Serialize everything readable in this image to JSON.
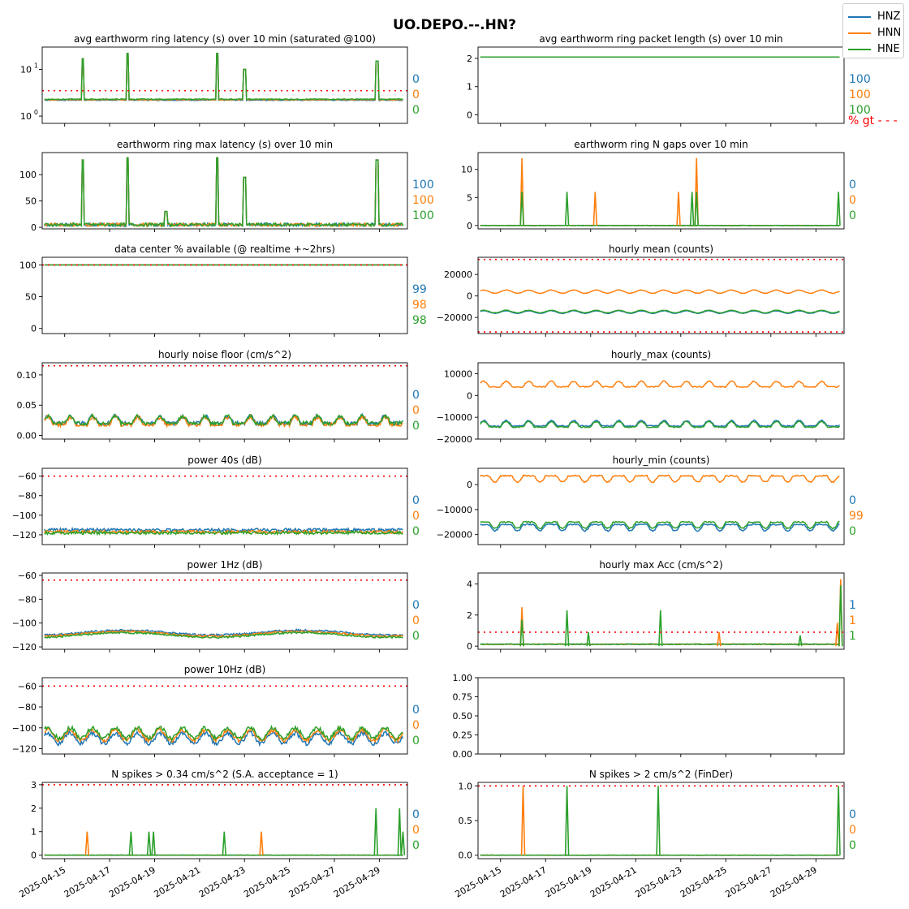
{
  "figure_title": "UO.DEPO.--.HN?",
  "legend": [
    {
      "name": "HNZ",
      "color": "#1f77b4"
    },
    {
      "name": "HNN",
      "color": "#ff7f0e"
    },
    {
      "name": "HNE",
      "color": "#2ca02c"
    }
  ],
  "colors": {
    "threshold": "#ff0000",
    "HNZ": "#1f77b4",
    "HNN": "#ff7f0e",
    "HNE": "#2ca02c"
  },
  "x_dates": [
    "2025-04-15",
    "2025-04-17",
    "2025-04-19",
    "2025-04-21",
    "2025-04-23",
    "2025-04-25",
    "2025-04-27",
    "2025-04-29"
  ],
  "x_range": [
    "2025-04-14",
    "2025-04-30"
  ],
  "pct_gt_label": "% gt - - -",
  "chart_data": [
    {
      "id": "p1",
      "type": "line",
      "title": "avg earthworm ring latency (s)   over 10 min (saturated @100)",
      "yscale": "log",
      "ylim": [
        0.7,
        30
      ],
      "yticks": [
        {
          "v": 10,
          "t": "10"
        },
        {
          "v": 1,
          "t": "10"
        }
      ],
      "ytick_sup": [
        "1",
        "0"
      ],
      "threshold": 3.5,
      "pct_gt": [
        "0",
        "0",
        "0"
      ],
      "baseline": [
        2.2,
        2.25,
        2.3
      ],
      "spikes": [
        [
          2025,
          4,
          15.8,
          17
        ],
        [
          2025,
          4,
          17.8,
          22
        ],
        [
          2025,
          4,
          21.8,
          22
        ],
        [
          2025,
          4,
          23.0,
          10
        ],
        [
          2025,
          4,
          28.9,
          15
        ]
      ]
    },
    {
      "id": "p2",
      "type": "line",
      "title": "avg earthworm ring packet length (s)   over 10 min",
      "ylim": [
        -0.3,
        2.4
      ],
      "yticks": [
        {
          "v": 0,
          "t": "0"
        },
        {
          "v": 1,
          "t": "1"
        },
        {
          "v": 2,
          "t": "2"
        }
      ],
      "threshold": null,
      "pct_gt": [
        "100",
        "100",
        "100"
      ],
      "baseline": [
        2.05,
        2.05,
        2.05
      ],
      "spikes": []
    },
    {
      "id": "p3",
      "type": "line",
      "title": "earthworm ring max latency (s)   over 10 min",
      "ylim": [
        -3,
        142
      ],
      "yticks": [
        {
          "v": 0,
          "t": "0"
        },
        {
          "v": 50,
          "t": "50"
        },
        {
          "v": 100,
          "t": "100"
        }
      ],
      "threshold": null,
      "pct_gt": [
        "100",
        "100",
        "100"
      ],
      "baseline": [
        5,
        5,
        5
      ],
      "spikes": [
        [
          2025,
          4,
          15.8,
          128
        ],
        [
          2025,
          4,
          17.8,
          132
        ],
        [
          2025,
          4,
          19.5,
          30
        ],
        [
          2025,
          4,
          21.8,
          132
        ],
        [
          2025,
          4,
          23.0,
          95
        ],
        [
          2025,
          4,
          28.9,
          128
        ]
      ]
    },
    {
      "id": "p4",
      "type": "line",
      "title": "earthworm ring N gaps   over 10 min",
      "ylim": [
        -0.6,
        13
      ],
      "yticks": [
        {
          "v": 0,
          "t": "0"
        },
        {
          "v": 5,
          "t": "5"
        },
        {
          "v": 10,
          "t": "10"
        }
      ],
      "threshold": null,
      "pct_gt": [
        "0",
        "0",
        "0"
      ],
      "baseline": [
        0,
        0,
        0
      ],
      "spikes": []
    },
    {
      "id": "p5",
      "type": "line",
      "title": "data center % available (@ realtime +~2hrs)",
      "ylim": [
        -8,
        112
      ],
      "yticks": [
        {
          "v": 0,
          "t": "0"
        },
        {
          "v": 50,
          "t": "50"
        },
        {
          "v": 100,
          "t": "100"
        }
      ],
      "threshold": 100,
      "pct_gt": [
        "99",
        "98",
        "98"
      ],
      "baseline": [
        100,
        100,
        100
      ],
      "spikes": []
    },
    {
      "id": "p6",
      "type": "line",
      "title": "hourly mean (counts)",
      "ylim": [
        -35000,
        36000
      ],
      "yticks": [
        {
          "v": -20000,
          "t": "−20000"
        },
        {
          "v": 0,
          "t": "0"
        },
        {
          "v": 20000,
          "t": "20000"
        }
      ],
      "threshold": [
        -33500,
        34000
      ],
      "pct_gt": [],
      "baseline": [
        -15000,
        4000,
        -14500
      ],
      "spikes": []
    },
    {
      "id": "p7",
      "type": "line",
      "title": "hourly noise floor (cm/s^2)",
      "ylim": [
        -0.006,
        0.12
      ],
      "yticks": [
        {
          "v": 0,
          "t": "0.00"
        },
        {
          "v": 0.05,
          "t": "0.05"
        },
        {
          "v": 0.1,
          "t": "0.10"
        }
      ],
      "threshold": 0.115,
      "pct_gt": [
        "0",
        "0",
        "0"
      ],
      "baseline": [
        0.02,
        0.018,
        0.02
      ],
      "spikes": []
    },
    {
      "id": "p8",
      "type": "line",
      "title": "hourly_max (counts)",
      "ylim": [
        -20000,
        15000
      ],
      "yticks": [
        {
          "v": -20000,
          "t": "−20000"
        },
        {
          "v": -10000,
          "t": "−10000"
        },
        {
          "v": 0,
          "t": "0"
        },
        {
          "v": 10000,
          "t": "10000"
        }
      ],
      "threshold": null,
      "pct_gt": [],
      "baseline": [
        -14000,
        4000,
        -14500
      ],
      "spikes": []
    },
    {
      "id": "p9",
      "type": "line",
      "title": "power 40s (dB)",
      "ylim": [
        -130,
        -52
      ],
      "yticks": [
        {
          "v": -120,
          "t": "−120"
        },
        {
          "v": -100,
          "t": "−100"
        },
        {
          "v": -80,
          "t": "−80"
        },
        {
          "v": -60,
          "t": "−60"
        }
      ],
      "threshold": -60,
      "pct_gt": [
        "0",
        "0",
        "0"
      ],
      "baseline": [
        -115,
        -117,
        -118
      ],
      "spikes": []
    },
    {
      "id": "p10",
      "type": "line",
      "title": "hourly_min (counts)",
      "ylim": [
        -24000,
        6500
      ],
      "yticks": [
        {
          "v": -20000,
          "t": "−20000"
        },
        {
          "v": -10000,
          "t": "−10000"
        },
        {
          "v": 0,
          "t": "0"
        }
      ],
      "threshold": null,
      "pct_gt": [
        "0",
        "99",
        "0"
      ],
      "baseline": [
        -16000,
        3500,
        -15000
      ],
      "spikes": []
    },
    {
      "id": "p11",
      "type": "line",
      "title": "power 1Hz (dB)",
      "ylim": [
        -122,
        -58
      ],
      "yticks": [
        {
          "v": -120,
          "t": "−120"
        },
        {
          "v": -100,
          "t": "−100"
        },
        {
          "v": -80,
          "t": "−80"
        },
        {
          "v": -60,
          "t": "−60"
        }
      ],
      "threshold": -64,
      "pct_gt": [
        "0",
        "0",
        "0"
      ],
      "baseline": [
        -108,
        -109,
        -110
      ],
      "spikes": []
    },
    {
      "id": "p12",
      "type": "line",
      "title": "hourly max Acc (cm/s^2)",
      "ylim": [
        -0.2,
        4.7
      ],
      "yticks": [
        {
          "v": 0,
          "t": "0"
        },
        {
          "v": 2,
          "t": "2"
        },
        {
          "v": 4,
          "t": "4"
        }
      ],
      "threshold": 0.9,
      "pct_gt": [
        "1",
        "1",
        "1"
      ],
      "baseline": [
        0.1,
        0.1,
        0.1
      ],
      "spikes": []
    },
    {
      "id": "p13",
      "type": "line",
      "title": "power 10Hz (dB)",
      "ylim": [
        -125,
        -52
      ],
      "yticks": [
        {
          "v": -120,
          "t": "−120"
        },
        {
          "v": -100,
          "t": "−100"
        },
        {
          "v": -80,
          "t": "−80"
        },
        {
          "v": -60,
          "t": "−60"
        }
      ],
      "threshold": -60,
      "pct_gt": [
        "0",
        "0",
        "0"
      ],
      "baseline": [
        -110,
        -107,
        -105
      ],
      "spikes": []
    },
    {
      "id": "p14",
      "type": "empty",
      "title": "",
      "ylim": [
        0,
        1
      ],
      "yticks": [
        {
          "v": 0,
          "t": "0.00"
        },
        {
          "v": 0.25,
          "t": "0.25"
        },
        {
          "v": 0.5,
          "t": "0.50"
        },
        {
          "v": 0.75,
          "t": "0.75"
        },
        {
          "v": 1,
          "t": "1.00"
        }
      ],
      "threshold": null,
      "pct_gt": [],
      "baseline": [],
      "spikes": []
    },
    {
      "id": "p15",
      "type": "line",
      "title": "N spikes > 0.34 cm/s^2 (S.A. acceptance = 1)",
      "ylim": [
        -0.15,
        3.1
      ],
      "yticks": [
        {
          "v": 0,
          "t": "0"
        },
        {
          "v": 1,
          "t": "1"
        },
        {
          "v": 2,
          "t": "2"
        },
        {
          "v": 3,
          "t": "3"
        }
      ],
      "threshold": 3,
      "pct_gt": [
        "0",
        "0",
        "0"
      ],
      "baseline": [
        0,
        0,
        0
      ],
      "spikes": []
    },
    {
      "id": "p16",
      "type": "line",
      "title": "N spikes > 2 cm/s^2 (FinDer)",
      "ylim": [
        -0.05,
        1.05
      ],
      "yticks": [
        {
          "v": 0,
          "t": "0.0"
        },
        {
          "v": 0.5,
          "t": "0.5"
        },
        {
          "v": 1,
          "t": "1.0"
        }
      ],
      "threshold": 1,
      "pct_gt": [
        "0",
        "0",
        "0"
      ],
      "baseline": [
        0,
        0,
        0
      ],
      "spikes": []
    }
  ],
  "events": {
    "p4": [
      [
        "HNN",
        15.95,
        12
      ],
      [
        "HNE",
        15.95,
        6
      ],
      [
        "HNE",
        17.95,
        6
      ],
      [
        "HNN",
        19.2,
        6
      ],
      [
        "HNN",
        22.9,
        6
      ],
      [
        "HNE",
        23.5,
        6
      ],
      [
        "HNN",
        23.7,
        12
      ],
      [
        "HNE",
        23.7,
        6
      ],
      [
        "HNE",
        30.0,
        6
      ]
    ],
    "p12": [
      [
        "HNN",
        15.95,
        2.5
      ],
      [
        "HNE",
        15.95,
        1.7
      ],
      [
        "HNE",
        17.95,
        2.3
      ],
      [
        "HNE",
        18.9,
        0.9
      ],
      [
        "HNE",
        22.1,
        2.3
      ],
      [
        "HNN",
        24.7,
        0.9
      ],
      [
        "HNE",
        28.3,
        0.7
      ],
      [
        "HNN",
        29.95,
        1.5
      ],
      [
        "HNN",
        30.1,
        4.3
      ],
      [
        "HNE",
        30.1,
        3.9
      ]
    ],
    "p15": [
      [
        "HNN",
        16.0,
        1
      ],
      [
        "HNE",
        17.95,
        1
      ],
      [
        "HNE",
        18.75,
        1
      ],
      [
        "HNE",
        18.95,
        1
      ],
      [
        "HNE",
        22.1,
        1
      ],
      [
        "HNN",
        23.75,
        1
      ],
      [
        "HNE",
        28.85,
        2
      ],
      [
        "HNE",
        29.9,
        2
      ],
      [
        "HNE",
        30.05,
        1
      ]
    ],
    "p16": [
      [
        "HNN",
        16.0,
        1
      ],
      [
        "HNE",
        17.95,
        1
      ],
      [
        "HNE",
        22.0,
        1
      ],
      [
        "HNE",
        30.0,
        1
      ]
    ]
  }
}
